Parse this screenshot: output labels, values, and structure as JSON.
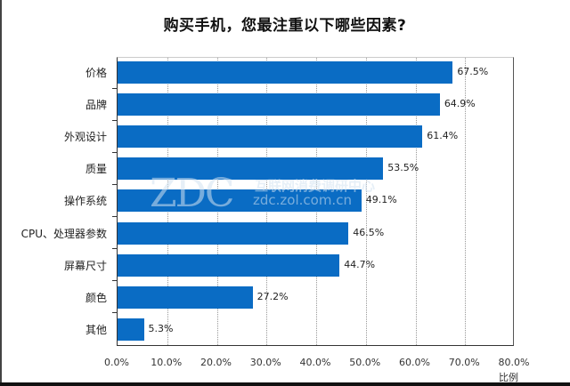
{
  "chart_data": {
    "type": "bar",
    "orientation": "horizontal",
    "title": "购买手机，您最注重以下哪些因素?",
    "xlabel": "比例",
    "ylabel": "",
    "xlim": [
      0,
      80
    ],
    "x_ticks": [
      "0.0%",
      "10.0%",
      "20.0%",
      "30.0%",
      "40.0%",
      "50.0%",
      "60.0%",
      "70.0%",
      "80.0%"
    ],
    "grid": "vertical dotted",
    "legend": null,
    "bar_color": "#0a6cc4",
    "categories": [
      "价格",
      "品牌",
      "外观设计",
      "质量",
      "操作系统",
      "CPU、处理器参数",
      "屏幕尺寸",
      "颜色",
      "其他"
    ],
    "values": [
      67.5,
      64.9,
      61.4,
      53.5,
      49.1,
      46.5,
      44.7,
      27.2,
      5.3
    ],
    "value_labels": [
      "67.5%",
      "64.9%",
      "61.4%",
      "53.5%",
      "49.1%",
      "46.5%",
      "44.7%",
      "27.2%",
      "5.3%"
    ]
  },
  "watermark": {
    "logo": "ZDC",
    "name": "互联网消费调研中心",
    "url": "zdc.zol.com.cn"
  }
}
